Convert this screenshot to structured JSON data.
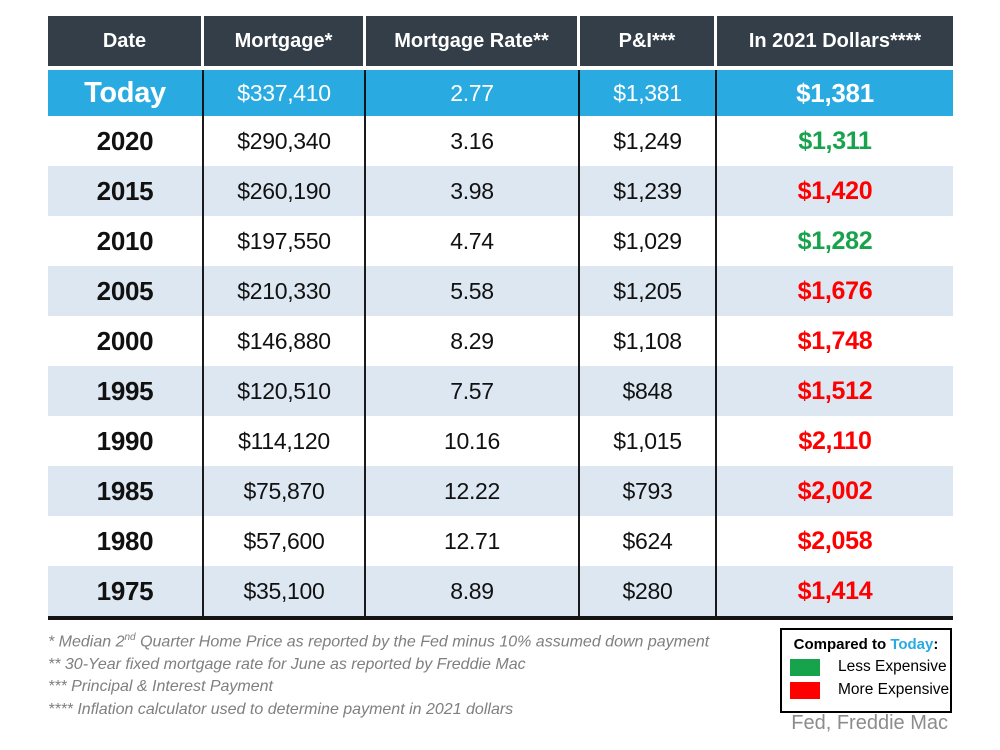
{
  "chart_data": {
    "type": "table",
    "columns": [
      "Date",
      "Mortgage*",
      "Mortgage Rate**",
      "P&I***",
      "In 2021 Dollars****"
    ],
    "rows": [
      [
        "Today",
        337410,
        2.77,
        1381,
        1381
      ],
      [
        "2020",
        290340,
        3.16,
        1249,
        1311
      ],
      [
        "2015",
        260190,
        3.98,
        1239,
        1420
      ],
      [
        "2010",
        197550,
        4.74,
        1029,
        1282
      ],
      [
        "2005",
        210330,
        5.58,
        1205,
        1676
      ],
      [
        "2000",
        146880,
        8.29,
        1108,
        1748
      ],
      [
        "1995",
        120510,
        7.57,
        848,
        1512
      ],
      [
        "1990",
        114120,
        10.16,
        1015,
        2110
      ],
      [
        "1985",
        75870,
        12.22,
        793,
        2002
      ],
      [
        "1980",
        57600,
        12.71,
        624,
        2058
      ],
      [
        "1975",
        35100,
        8.89,
        280,
        1414
      ]
    ],
    "comparison_to_today": [
      "today",
      "less",
      "more",
      "less",
      "more",
      "more",
      "more",
      "more",
      "more",
      "more",
      "more"
    ],
    "legend_position": "bottom-right",
    "source": "Fed, Freddie Mac"
  },
  "table": {
    "headers": [
      "Date",
      "Mortgage*",
      "Mortgage Rate**",
      "P&I***",
      "In 2021 Dollars****"
    ],
    "rows": [
      {
        "date": "Today",
        "mortgage": "$337,410",
        "rate": "2.77",
        "pi": "$1,381",
        "in_2021": "$1,381",
        "compare": "today"
      },
      {
        "date": "2020",
        "mortgage": "$290,340",
        "rate": "3.16",
        "pi": "$1,249",
        "in_2021": "$1,311",
        "compare": "less"
      },
      {
        "date": "2015",
        "mortgage": "$260,190",
        "rate": "3.98",
        "pi": "$1,239",
        "in_2021": "$1,420",
        "compare": "more"
      },
      {
        "date": "2010",
        "mortgage": "$197,550",
        "rate": "4.74",
        "pi": "$1,029",
        "in_2021": "$1,282",
        "compare": "less"
      },
      {
        "date": "2005",
        "mortgage": "$210,330",
        "rate": "5.58",
        "pi": "$1,205",
        "in_2021": "$1,676",
        "compare": "more"
      },
      {
        "date": "2000",
        "mortgage": "$146,880",
        "rate": "8.29",
        "pi": "$1,108",
        "in_2021": "$1,748",
        "compare": "more"
      },
      {
        "date": "1995",
        "mortgage": "$120,510",
        "rate": "7.57",
        "pi": "$848",
        "in_2021": "$1,512",
        "compare": "more"
      },
      {
        "date": "1990",
        "mortgage": "$114,120",
        "rate": "10.16",
        "pi": "$1,015",
        "in_2021": "$2,110",
        "compare": "more"
      },
      {
        "date": "1985",
        "mortgage": "$75,870",
        "rate": "12.22",
        "pi": "$793",
        "in_2021": "$2,002",
        "compare": "more"
      },
      {
        "date": "1980",
        "mortgage": "$57,600",
        "rate": "12.71",
        "pi": "$624",
        "in_2021": "$2,058",
        "compare": "more"
      },
      {
        "date": "1975",
        "mortgage": "$35,100",
        "rate": "8.89",
        "pi": "$280",
        "in_2021": "$1,414",
        "compare": "more"
      }
    ]
  },
  "footnotes": {
    "f1_prefix": "* Median 2",
    "f1_sup": "nd",
    "f1_rest": " Quarter Home Price as reported by the Fed minus 10% assumed down payment",
    "f2": "** 30-Year fixed mortgage rate for June as reported by Freddie Mac",
    "f3": "*** Principal & Interest Payment",
    "f4": "**** Inflation calculator used to determine payment in 2021 dollars"
  },
  "legend": {
    "title_prefix": "Compared to ",
    "title_highlight": "Today",
    "title_suffix": ":",
    "items": [
      {
        "label": "Less Expensive",
        "color": "#17a24c"
      },
      {
        "label": "More Expensive",
        "color": "#ff0000"
      }
    ]
  },
  "source": "Fed, Freddie Mac",
  "colors": {
    "accent_blue": "#29abe2",
    "header_bg": "#333e48",
    "row_alt_bg": "#dde7f2",
    "less_expensive": "#17a24c",
    "more_expensive": "#ff0000",
    "footnote_gray": "#7f7f7f"
  }
}
